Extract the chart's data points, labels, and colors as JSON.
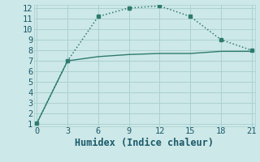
{
  "xlabel": "Humidex (Indice chaleur)",
  "bg_color": "#cde8e8",
  "grid_color": "#aad0d0",
  "line1_x": [
    0,
    3,
    6,
    9,
    12,
    15,
    18,
    21
  ],
  "line1_y": [
    1.1,
    7.0,
    11.2,
    12.0,
    12.2,
    11.2,
    9.0,
    8.0
  ],
  "line2_x": [
    0,
    3,
    6,
    9,
    12,
    15,
    18,
    21
  ],
  "line2_y": [
    1.1,
    7.0,
    7.4,
    7.6,
    7.7,
    7.7,
    7.9,
    7.9
  ],
  "line_color": "#2e7b6e",
  "xlim": [
    -0.3,
    21.3
  ],
  "ylim": [
    0.8,
    12.3
  ],
  "xticks": [
    0,
    3,
    6,
    9,
    12,
    15,
    18,
    21
  ],
  "yticks": [
    1,
    2,
    3,
    4,
    5,
    6,
    7,
    8,
    9,
    10,
    11,
    12
  ],
  "font_color": "#1a5a6a",
  "tick_fontsize": 7.5,
  "xlabel_fontsize": 8.5
}
